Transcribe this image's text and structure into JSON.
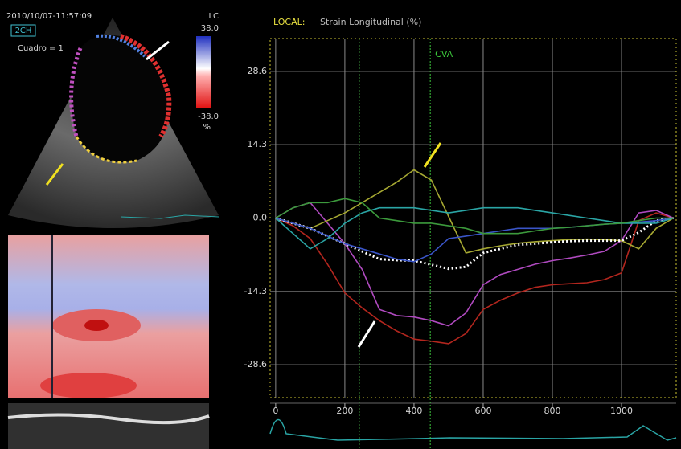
{
  "panel": {
    "timestamp": "2010/10/07-11:57:09",
    "view": "2CH",
    "frame": "Cuadro = 1",
    "scale_title": "LC",
    "scale_max": "38.0",
    "scale_min": "-38.0",
    "scale_unit": "%"
  },
  "chart_data": {
    "type": "line",
    "title": "LOCAL:",
    "subtitle": "Strain Longitudinal (%)",
    "x": [
      0,
      50,
      100,
      150,
      200,
      250,
      300,
      350,
      400,
      450,
      500,
      550,
      600,
      650,
      700,
      750,
      800,
      850,
      900,
      950,
      1000,
      1050,
      1100,
      1150
    ],
    "series": [
      {
        "color": "#b3261e",
        "values": [
          0,
          -1.5,
          -4,
          -9,
          -14.6,
          -17.5,
          -20,
          -22,
          -23.6,
          -24,
          -24.5,
          -22.5,
          -17.8,
          -16,
          -14.6,
          -13.5,
          -13,
          -12.8,
          -12.6,
          -12,
          -10.7,
          -0.5,
          1,
          0
        ]
      },
      {
        "color": "#b04ac0",
        "values": [
          0,
          2,
          3,
          -1,
          -5,
          -10,
          -17.8,
          -19,
          -19.3,
          -20,
          -21,
          -18.5,
          -13,
          -11,
          -10,
          -9,
          -8.3,
          -7.8,
          -7.2,
          -6.5,
          -4.4,
          1,
          1.5,
          0
        ]
      },
      {
        "color": "#a6a832",
        "values": [
          0,
          -1,
          -2,
          -0.5,
          1,
          3,
          5,
          7,
          9.4,
          7.4,
          0.3,
          -6.8,
          -6,
          -5.4,
          -4.9,
          -4.6,
          -4.4,
          -4.2,
          -4.1,
          -4.2,
          -4.4,
          -6,
          -2,
          0
        ]
      },
      {
        "color": "#ffffff",
        "dashed": true,
        "values": [
          0,
          -1,
          -2,
          -3.5,
          -5,
          -6.5,
          -8,
          -8.2,
          -8.3,
          -9.1,
          -9.9,
          -9.5,
          -6.8,
          -6,
          -5.2,
          -5,
          -4.7,
          -4.5,
          -4.4,
          -4.4,
          -4.4,
          -2.8,
          -0.5,
          0
        ]
      },
      {
        "color": "#3a55c8",
        "values": [
          0,
          -1,
          -2,
          -3.5,
          -5,
          -6,
          -7,
          -8,
          -8.5,
          -7,
          -4,
          -3.5,
          -3,
          -2.5,
          -2,
          -2,
          -2,
          -1.8,
          -1.5,
          -1.2,
          -1,
          -0.8,
          -0.5,
          0
        ]
      },
      {
        "color": "#2aa5a5",
        "values": [
          0,
          -3,
          -6,
          -4,
          -1,
          1,
          2,
          2,
          2,
          1.5,
          1,
          1.5,
          2,
          2,
          2,
          1.5,
          1,
          0.5,
          0,
          -0.5,
          -1,
          -1,
          -1,
          0
        ]
      },
      {
        "color": "#3c9a3c",
        "values": [
          0,
          2,
          3,
          3,
          3.8,
          3,
          0,
          -0.5,
          -1,
          -1,
          -1.5,
          -2,
          -3,
          -3,
          -3,
          -2.5,
          -2,
          -1.8,
          -1.5,
          -1.2,
          -1,
          -0.5,
          0,
          0
        ]
      }
    ],
    "markers": [
      {
        "x": 242,
        "color": "#3c9a3c"
      },
      {
        "x": 447,
        "label": "CVA",
        "color": "#3cc83c"
      }
    ],
    "xlim": [
      -16,
      1158
    ],
    "xticks": [
      0,
      200,
      400,
      600,
      800,
      1000
    ],
    "ylim": [
      -35,
      35
    ],
    "yticks": [
      28.6,
      14.3,
      {
        "value": 0,
        "label": "0.0"
      },
      -14.3,
      -28.6
    ],
    "grid": true
  }
}
